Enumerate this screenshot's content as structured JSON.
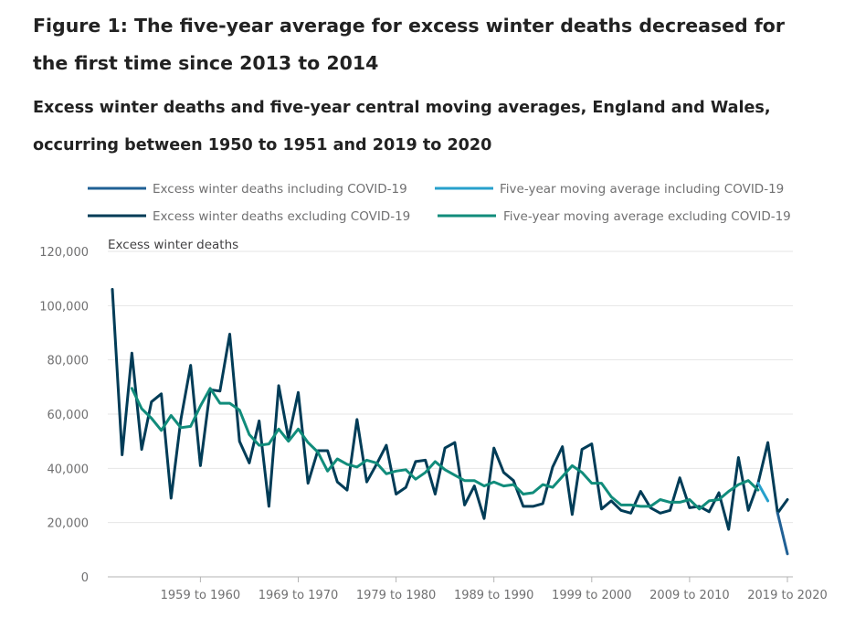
{
  "figure": {
    "title": "Figure 1: The five-year average for excess winter deaths decreased for the first time since 2013 to 2014",
    "subtitle": "Excess winter deaths and five-year central moving averages, England and Wales, occurring between 1950 to 1951 and 2019 to 2020"
  },
  "chart_data": {
    "type": "line",
    "ylabel": "Excess winter deaths",
    "ylim": [
      0,
      120000
    ],
    "yticks": [
      0,
      20000,
      40000,
      60000,
      80000,
      100000,
      120000
    ],
    "ytick_labels": [
      "0",
      "20,000",
      "40,000",
      "60,000",
      "80,000",
      "100,000",
      "120,000"
    ],
    "x_start_year": 1950,
    "x_end_year": 2019,
    "xtick_years": [
      1959,
      1969,
      1979,
      1989,
      1999,
      2009,
      2019
    ],
    "xtick_labels": [
      "1959 to 1960",
      "1969 to 1970",
      "1979 to 1980",
      "1989 to 1990",
      "1999 to 2000",
      "2009 to 2010",
      "2019 to 2020"
    ],
    "grid": true,
    "legend_position": "top",
    "series": [
      {
        "name": "Excess winter deaths including COVID-19",
        "color": "#206095",
        "start_year": 2018,
        "values": [
          23500,
          8500
        ]
      },
      {
        "name": "Five-year moving average including COVID-19",
        "color": "#27a0cc",
        "start_year": 2016,
        "values": [
          34500,
          28000
        ]
      },
      {
        "name": "Excess winter deaths excluding COVID-19",
        "color": "#003c57",
        "start_year": 1950,
        "values": [
          106000,
          45000,
          82500,
          47000,
          64500,
          67500,
          29000,
          58000,
          78000,
          41000,
          69000,
          68500,
          89500,
          50000,
          42000,
          57500,
          26000,
          70500,
          51000,
          68000,
          34500,
          46500,
          46500,
          35000,
          32000,
          58000,
          35000,
          41500,
          48500,
          30500,
          33000,
          42500,
          43000,
          30500,
          47500,
          49500,
          26500,
          33500,
          21500,
          47500,
          38500,
          35500,
          26000,
          26000,
          27000,
          40500,
          48000,
          23000,
          47000,
          49000,
          25000,
          28000,
          24500,
          23500,
          31500,
          25500,
          23500,
          24500,
          36500,
          25500,
          26000,
          24000,
          31000,
          17500,
          44000,
          24500,
          34500,
          49500,
          23500,
          28500
        ]
      },
      {
        "name": "Five-year moving average excluding COVID-19",
        "color": "#118c7b",
        "start_year": 1952,
        "values": [
          69500,
          62000,
          58500,
          54000,
          59500,
          55000,
          55500,
          63000,
          69500,
          64000,
          64000,
          61500,
          52500,
          48500,
          49000,
          54500,
          50000,
          54500,
          49500,
          46000,
          39000,
          43500,
          41500,
          40500,
          43000,
          42000,
          38000,
          39000,
          39500,
          36000,
          38500,
          42500,
          39500,
          37500,
          35500,
          35500,
          33500,
          35000,
          33500,
          34000,
          30500,
          31000,
          34000,
          33000,
          37000,
          41000,
          38500,
          34500,
          34500,
          29500,
          26500,
          26500,
          26000,
          26000,
          28500,
          27500,
          27500,
          28500,
          25000,
          28000,
          28500,
          31500,
          34000,
          35500,
          32000
        ]
      }
    ]
  }
}
